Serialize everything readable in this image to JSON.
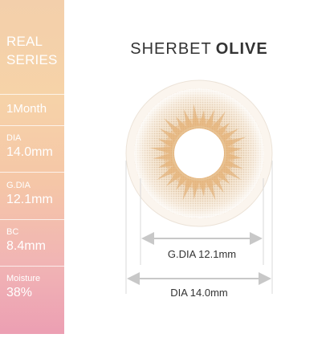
{
  "sidebar": {
    "series_line1": "REAL",
    "series_line2": "SERIES",
    "duration": "1Month",
    "specs": [
      {
        "label": "DIA",
        "value": "14.0mm"
      },
      {
        "label": "G.DIA",
        "value": "12.1mm"
      },
      {
        "label": "BC",
        "value": "8.4mm"
      },
      {
        "label": "Moisture",
        "value": "38%"
      }
    ]
  },
  "product": {
    "name_part1": "SHERBET",
    "name_part2": "OLIVE"
  },
  "dimensions": {
    "gdia_label": "G.DIA 12.1mm",
    "dia_label": "DIA 14.0mm"
  },
  "colors": {
    "lens_tint": "#e6c69e",
    "lens_dark": "#c9a070",
    "arrow": "#c8c8c8",
    "sidebar_top": "#f3cfab",
    "sidebar_bottom": "#ec9fb3"
  }
}
